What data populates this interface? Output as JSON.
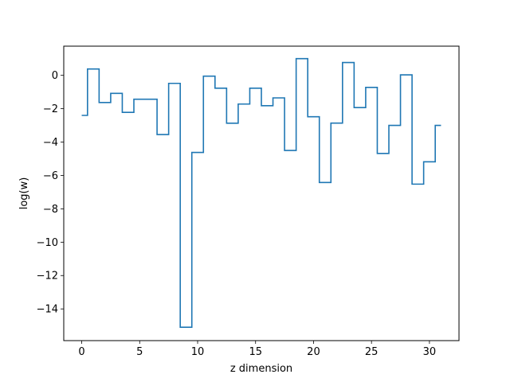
{
  "chart_data": {
    "type": "line",
    "drawstyle": "steps-mid",
    "title": "",
    "xlabel": "z dimension",
    "ylabel": "log(w)",
    "xlim": [
      -1.55,
      32.55
    ],
    "ylim": [
      -15.9,
      1.75
    ],
    "xticks": [
      0,
      5,
      10,
      15,
      20,
      25,
      30
    ],
    "yticks": [
      0,
      -2,
      -4,
      -6,
      -8,
      -10,
      -12,
      -14
    ],
    "xtick_labels": [
      "0",
      "5",
      "10",
      "15",
      "20",
      "25",
      "30"
    ],
    "ytick_labels": [
      "0",
      "−2",
      "−4",
      "−6",
      "−8",
      "−10",
      "−12",
      "−14"
    ],
    "grid": false,
    "line_color": "#1f77b4",
    "series": [
      {
        "x": [
          0,
          1,
          2,
          3,
          4,
          5,
          6,
          7,
          8,
          9,
          10,
          11,
          12,
          13,
          14,
          15,
          16,
          17,
          18,
          19,
          20,
          21,
          22,
          23,
          24,
          25,
          26,
          27,
          28,
          29,
          30,
          31
        ],
        "y": [
          -2.4,
          0.38,
          -1.63,
          -1.08,
          -2.22,
          -1.43,
          -1.43,
          -3.55,
          -0.48,
          -15.1,
          -4.62,
          -0.05,
          -0.77,
          -2.87,
          -1.72,
          -0.77,
          -1.82,
          -1.35,
          -4.5,
          1.0,
          -2.48,
          -6.42,
          -2.86,
          0.77,
          -1.93,
          -0.72,
          -4.68,
          -3.0,
          0.03,
          -6.52,
          -5.18,
          -3.0
        ]
      }
    ]
  }
}
